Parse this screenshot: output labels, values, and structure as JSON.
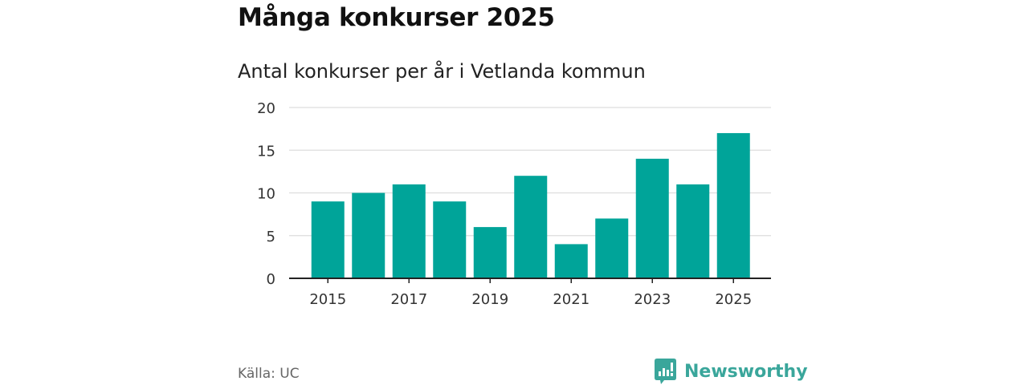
{
  "title": "Många konkurser 2025",
  "subtitle": "Antal konkurser per år i Vetlanda kommun",
  "source": "Källa: UC",
  "logo": {
    "text": "Newsworthy",
    "icon": "newsworthy-logo-icon"
  },
  "colors": {
    "bar": "#00a499",
    "grid": "#dddddd",
    "axis": "#222222",
    "logo": "#3aa69b"
  },
  "chart_data": {
    "type": "bar",
    "categories": [
      "2015",
      "2016",
      "2017",
      "2018",
      "2019",
      "2020",
      "2021",
      "2022",
      "2023",
      "2024",
      "2025"
    ],
    "values": [
      9,
      10,
      11,
      9,
      6,
      12,
      4,
      7,
      14,
      11,
      17
    ],
    "xtick_labels": [
      "2015",
      "2017",
      "2019",
      "2021",
      "2023",
      "2025"
    ],
    "yticks": [
      0,
      5,
      10,
      15,
      20
    ],
    "ylim": [
      0,
      20
    ],
    "grid": true,
    "legend": "none",
    "xlabel": "",
    "ylabel": ""
  }
}
